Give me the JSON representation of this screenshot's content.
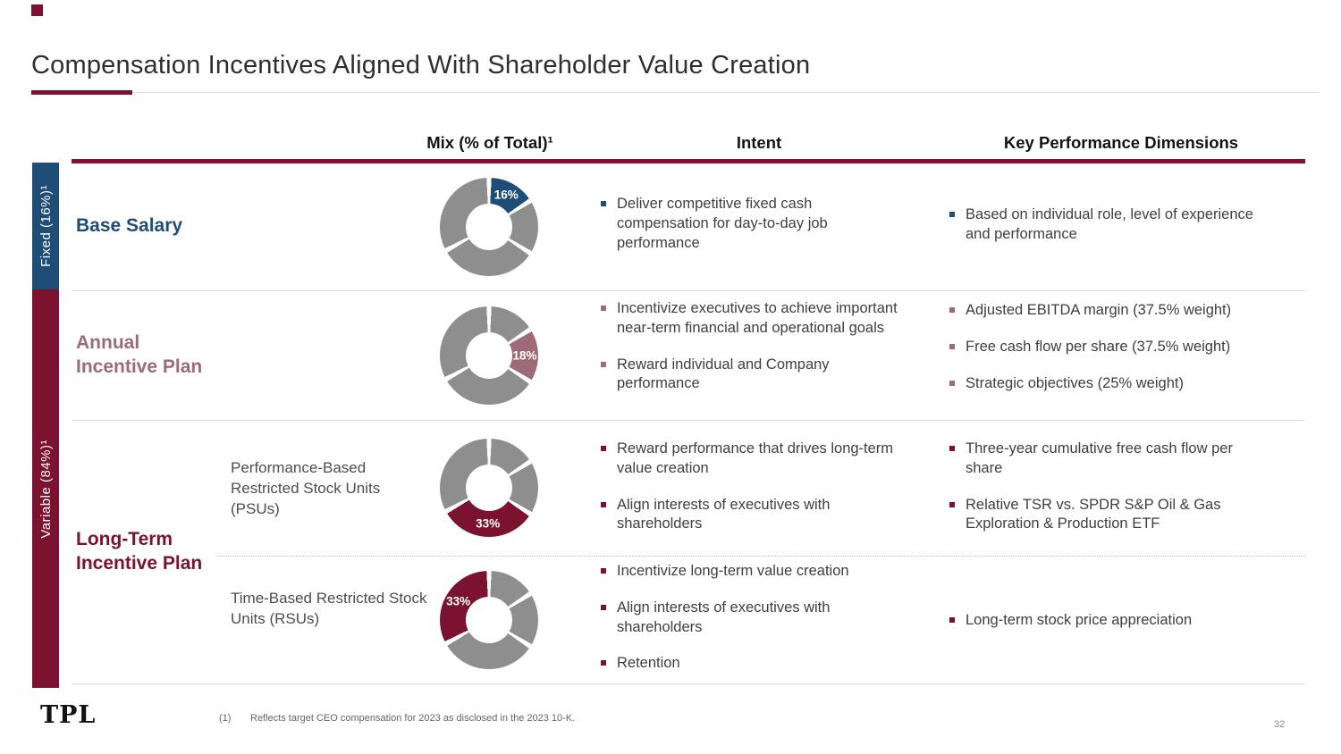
{
  "slide": {
    "title": "Compensation Incentives Aligned With Shareholder Value Creation"
  },
  "header": {
    "mix": "Mix (% of Total)¹",
    "intent": "Intent",
    "kpd": "Key Performance Dimensions"
  },
  "sidebars": {
    "fixed": {
      "label": "Fixed (16%)¹"
    },
    "variable": {
      "label": "Variable (84%)¹"
    }
  },
  "rows": [
    {
      "label": "Base Salary",
      "intent": [
        "Deliver competitive fixed cash compensation for day-to-day job performance"
      ],
      "kpd": [
        "Based on individual role, level of experience and performance"
      ]
    },
    {
      "label": "Annual Incentive Plan",
      "intent": [
        "Incentivize executives to achieve important near-term financial and operational goals",
        "Reward individual and Company performance"
      ],
      "kpd": [
        "Adjusted EBITDA margin (37.5% weight)",
        "Free cash flow per share (37.5% weight)",
        "Strategic objectives (25% weight)"
      ]
    },
    {
      "label": "Long-Term Incentive Plan",
      "sublabel": "Performance-Based Restricted Stock Units (PSUs)",
      "intent": [
        "Reward performance that drives long-term value creation",
        "Align interests of executives with shareholders"
      ],
      "kpd": [
        "Three-year cumulative free cash flow per share",
        "Relative TSR vs. SPDR S&P Oil & Gas Exploration & Production ETF"
      ]
    },
    {
      "sublabel": "Time-Based Restricted Stock Units (RSUs)",
      "intent": [
        "Incentivize long-term value creation",
        "Align interests of executives with shareholders",
        "Retention"
      ],
      "kpd": [
        "Long-term stock price appreciation"
      ]
    }
  ],
  "chart_data": {
    "type": "pie",
    "title": "Mix (% of Total)",
    "categories": [
      "Base Salary",
      "Annual Incentive Plan",
      "Performance-Based Restricted Stock Units (PSUs)",
      "Time-Based Restricted Stock Units (RSUs)"
    ],
    "values": [
      16,
      18,
      33,
      33
    ],
    "other_segment_color": "#8E8E8E",
    "donuts": [
      {
        "label": "16%",
        "highlight_index": 0,
        "highlight_color": "#1E4D78"
      },
      {
        "label": "18%",
        "highlight_index": 1,
        "highlight_color": "#9C6B77"
      },
      {
        "label": "33%",
        "highlight_index": 2,
        "highlight_color": "#7A1230"
      },
      {
        "label": "33%",
        "highlight_index": 3,
        "highlight_color": "#7A1230"
      }
    ]
  },
  "footer": {
    "logo": "TPL",
    "footnote_marker": "(1)",
    "footnote": "Reflects target CEO compensation for 2023 as disclosed in the 2023 10-K.",
    "page": "32"
  },
  "colors": {
    "navy": "#1E4D78",
    "maroon": "#7A1230",
    "mauve": "#9C6B77",
    "segment_gray": "#8E8E8E"
  }
}
